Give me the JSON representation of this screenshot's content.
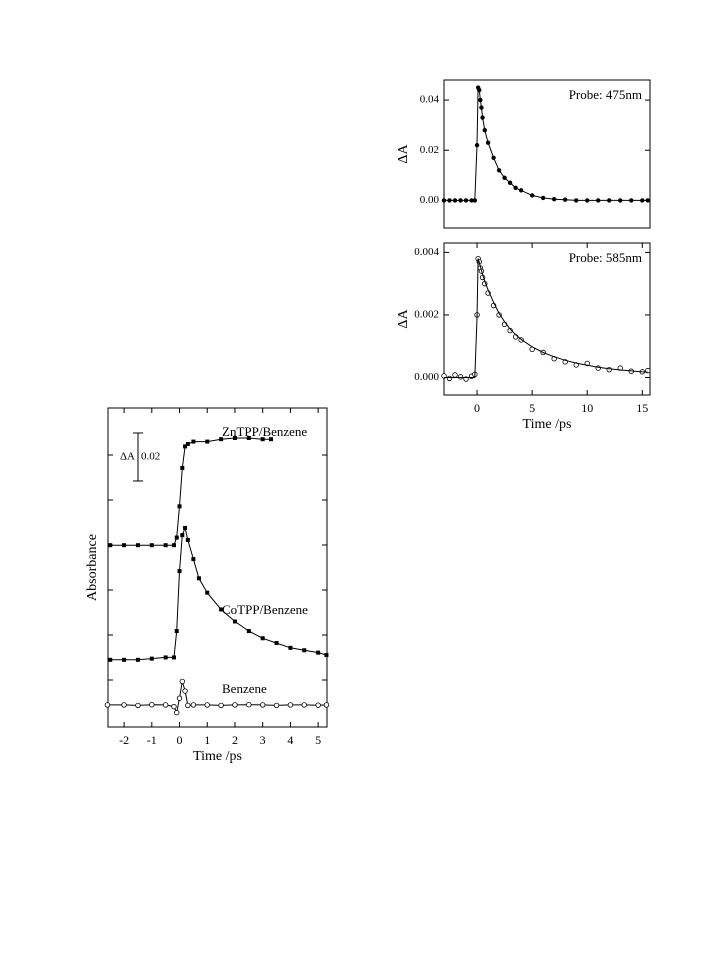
{
  "chart_data": [
    {
      "type": "line",
      "ylabel": "ΔA",
      "annotation": "Probe: 475nm",
      "xlim": [
        -3.0,
        15.7
      ],
      "ylim": [
        -0.011,
        0.048
      ],
      "yticks": [
        {
          "value": 0,
          "label": "0.00"
        },
        {
          "value": 0.02,
          "label": "0.02"
        },
        {
          "value": 0.04,
          "label": "0.04"
        }
      ],
      "series": [
        {
          "color": "#000000",
          "marker": "filled-circle",
          "x": [
            -3,
            -2.5,
            -2,
            -1.5,
            -1,
            -0.5,
            -0.2,
            0,
            0.1,
            0.2,
            0.3,
            0.4,
            0.5,
            0.7,
            1,
            1.5,
            2,
            2.5,
            3,
            3.5,
            4,
            5,
            6,
            7,
            8,
            9,
            10,
            11,
            12,
            13,
            14,
            15,
            15.5
          ],
          "values": [
            0,
            0,
            0,
            0,
            0,
            0,
            0,
            0.022,
            0.045,
            0.044,
            0.04,
            0.037,
            0.033,
            0.028,
            0.023,
            0.017,
            0.012,
            0.009,
            0.007,
            0.005,
            0.004,
            0.002,
            0.001,
            0.0005,
            0.0003,
            0,
            0,
            0,
            0,
            0,
            0,
            0,
            0
          ]
        }
      ]
    },
    {
      "type": "line",
      "ylabel": "ΔA",
      "xlabel": "Time /ps",
      "annotation": "Probe: 585nm",
      "xlim": [
        -3.0,
        15.7
      ],
      "ylim": [
        -0.00056,
        0.0043
      ],
      "xticks": [
        0,
        5,
        10,
        15
      ],
      "yticks": [
        {
          "value": 0,
          "label": "0.000"
        },
        {
          "value": 0.002,
          "label": "0.002"
        },
        {
          "value": 0.004,
          "label": "0.004"
        }
      ],
      "series": [
        {
          "color": "#000000",
          "marker": "open-circle",
          "line": false,
          "x": [
            -3,
            -2.5,
            -2,
            -1.5,
            -1,
            -0.5,
            -0.2,
            0,
            0.1,
            0.2,
            0.3,
            0.4,
            0.5,
            0.7,
            1,
            1.5,
            2,
            2.5,
            3,
            3.5,
            4,
            5,
            6,
            7,
            8,
            9,
            10,
            11,
            12,
            13,
            14,
            15,
            15.5
          ],
          "values": [
            5e-05,
            -3e-05,
            8e-05,
            2e-05,
            -5e-05,
            4e-05,
            0.0001,
            0.002,
            0.0038,
            0.0037,
            0.0035,
            0.0034,
            0.0032,
            0.003,
            0.0027,
            0.0023,
            0.002,
            0.0017,
            0.0015,
            0.0013,
            0.0012,
            0.0009,
            0.0008,
            0.0006,
            0.0005,
            0.0004,
            0.00045,
            0.0003,
            0.00025,
            0.0003,
            0.0002,
            0.00018,
            0.00022
          ]
        },
        {
          "color": "#000000",
          "marker": "none",
          "x": [
            -3,
            -2.5,
            -2,
            -1.5,
            -1,
            -0.5,
            -0.2,
            0,
            0.1,
            0.2,
            0.3,
            0.4,
            0.5,
            0.7,
            1,
            1.5,
            2,
            2.5,
            3,
            3.5,
            4,
            5,
            6,
            7,
            8,
            9,
            10,
            11,
            12,
            13,
            14,
            15,
            15.5
          ],
          "values": [
            0,
            0,
            0,
            0,
            0,
            0,
            0,
            0.0019,
            0.0038,
            0.00368,
            0.00355,
            0.00342,
            0.0033,
            0.00308,
            0.0028,
            0.0024,
            0.00205,
            0.00178,
            0.00155,
            0.00137,
            0.00122,
            0.00098,
            0.0008,
            0.00066,
            0.00055,
            0.00046,
            0.00039,
            0.00033,
            0.00028,
            0.00024,
            0.00021,
            0.00018,
            0.00017
          ]
        }
      ]
    },
    {
      "type": "line",
      "ylabel": "Absorbance",
      "xlabel": "Time /ps",
      "xlim": [
        -2.58,
        5.32
      ],
      "ylim": [
        0,
        0.133
      ],
      "xticks": [
        -2,
        -1,
        0,
        1,
        2,
        3,
        4,
        5
      ],
      "scale_bar": {
        "label": "ΔA",
        "value": 0.02,
        "value_label": "0.02"
      },
      "series": [
        {
          "name": "ZnTPP/Benzene",
          "color": "#000000",
          "marker": "filled-square",
          "x": [
            -2.5,
            -2,
            -1.5,
            -1,
            -0.5,
            -0.2,
            -0.1,
            0,
            0.1,
            0.2,
            0.3,
            0.5,
            1,
            1.5,
            2,
            2.5,
            3,
            3.3
          ],
          "values": [
            0.0758,
            0.0758,
            0.0758,
            0.0758,
            0.0758,
            0.0758,
            0.079,
            0.092,
            0.108,
            0.117,
            0.118,
            0.119,
            0.119,
            0.12,
            0.1205,
            0.1205,
            0.12,
            0.12
          ]
        },
        {
          "name": "CoTPP/Benzene",
          "color": "#000000",
          "marker": "filled-square",
          "x": [
            -2.5,
            -2,
            -1.5,
            -1,
            -0.5,
            -0.2,
            -0.1,
            0,
            0.1,
            0.2,
            0.3,
            0.5,
            0.7,
            1,
            1.5,
            2,
            2.5,
            3,
            3.5,
            4,
            4.5,
            5,
            5.3
          ],
          "values": [
            0.028,
            0.028,
            0.028,
            0.0285,
            0.029,
            0.029,
            0.04,
            0.065,
            0.08,
            0.083,
            0.078,
            0.07,
            0.062,
            0.056,
            0.049,
            0.044,
            0.04,
            0.037,
            0.035,
            0.033,
            0.032,
            0.031,
            0.03
          ]
        },
        {
          "name": "Benzene",
          "color": "#000000",
          "marker": "open-circle",
          "x": [
            -2.6,
            -2,
            -1.5,
            -1,
            -0.5,
            -0.2,
            -0.1,
            0,
            0.1,
            0.2,
            0.3,
            0.5,
            1,
            1.5,
            2,
            2.5,
            3,
            3.5,
            4,
            4.5,
            5,
            5.3
          ],
          "values": [
            0.0092,
            0.0092,
            0.009,
            0.0093,
            0.0092,
            0.0085,
            0.006,
            0.012,
            0.019,
            0.015,
            0.009,
            0.0092,
            0.0092,
            0.009,
            0.0092,
            0.0093,
            0.0092,
            0.009,
            0.0092,
            0.0092,
            0.0091,
            0.0092
          ]
        }
      ]
    }
  ]
}
